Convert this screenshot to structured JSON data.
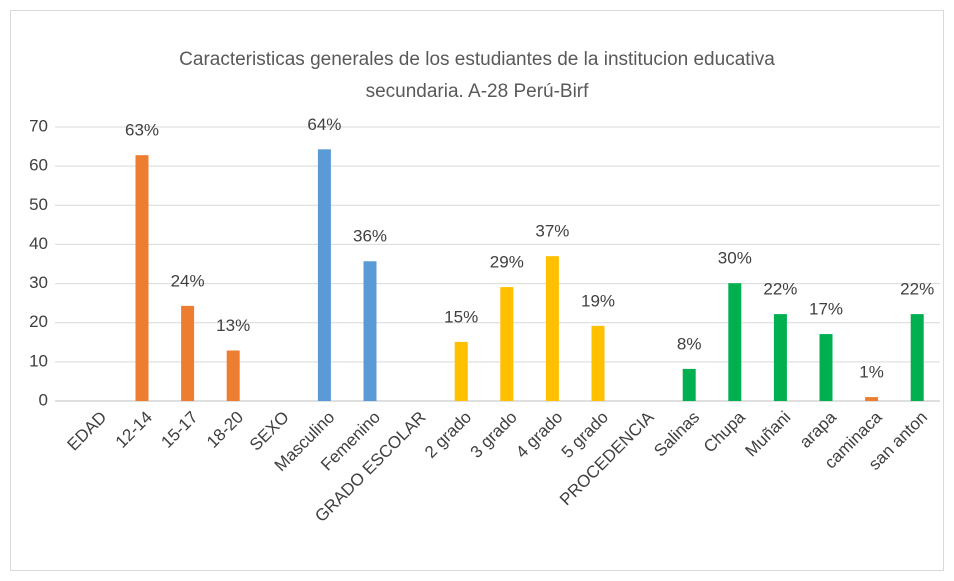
{
  "chart_data": {
    "type": "bar",
    "title": "Caracteristicas generales de los estudiantes de la institucion educativa secundaria. A-28 Perú-Birf",
    "categories": [
      "EDAD",
      "12-14",
      "15-17",
      "18-20",
      "SEXO",
      "Masculino",
      "Femenino",
      "GRADO ESCOLAR",
      "2 grado",
      "3 grado",
      "4 grado",
      "5 grado",
      "PROCEDENCIA",
      "Salinas",
      "Chupa",
      "Muñani",
      "arapa",
      "caminaca",
      "san anton"
    ],
    "values": [
      null,
      62.8,
      24.3,
      12.9,
      null,
      64.3,
      35.7,
      null,
      15.1,
      29.1,
      37.0,
      19.2,
      null,
      8.2,
      30.1,
      22.2,
      17.1,
      1.0,
      22.2
    ],
    "value_labels": [
      null,
      "63%",
      "24%",
      "13%",
      null,
      "64%",
      "36%",
      null,
      "15%",
      "29%",
      "37%",
      "19%",
      null,
      "8%",
      "30%",
      "22%",
      "17%",
      "1%",
      "22%"
    ],
    "colors": [
      null,
      "#ed7d31",
      "#ed7d31",
      "#ed7d31",
      null,
      "#5b9bd5",
      "#5b9bd5",
      null,
      "#ffc000",
      "#ffc000",
      "#ffc000",
      "#ffc000",
      null,
      "#00b050",
      "#00b050",
      "#00b050",
      "#00b050",
      "#ed7d31",
      "#00b050"
    ],
    "ylim": [
      0,
      70
    ],
    "yticks": [
      0,
      10,
      20,
      30,
      40,
      50,
      60,
      70
    ],
    "grid": true
  }
}
